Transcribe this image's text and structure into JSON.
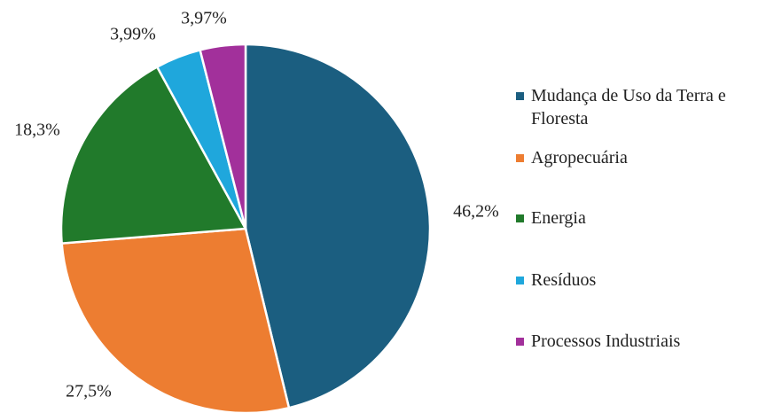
{
  "chart_data": {
    "type": "pie",
    "categories": [
      "Mudança de Uso da Terra e Floresta",
      "Agropecuária",
      "Energia",
      "Resíduos",
      "Processos Industriais"
    ],
    "values": [
      46.2,
      27.5,
      18.3,
      3.99,
      3.97
    ],
    "value_labels": [
      "46,2%",
      "27,5%",
      "18,3%",
      "3,99%",
      "3,97%"
    ],
    "colors": [
      "#1b5e80",
      "#ed7d31",
      "#217a2b",
      "#1fa7dc",
      "#a2309b"
    ],
    "legend": "right"
  }
}
